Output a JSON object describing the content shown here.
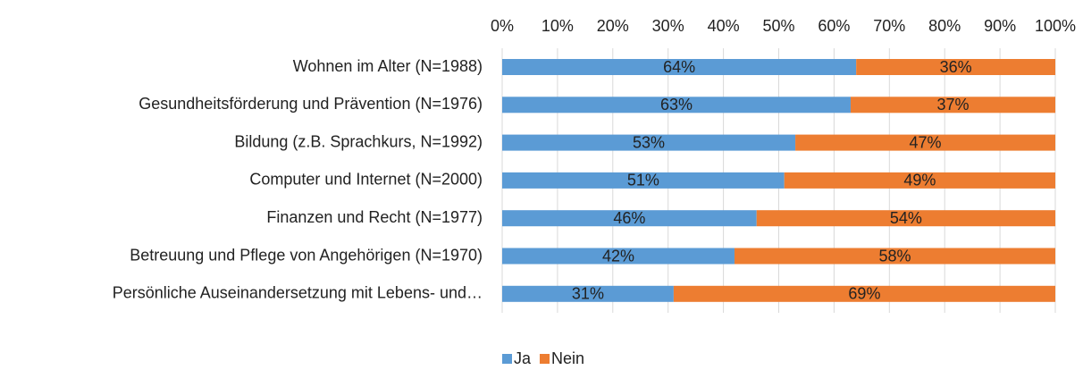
{
  "chart_data": {
    "type": "stacked_barh",
    "categories": [
      "Wohnen im Alter (N=1988)",
      "Gesundheitsförderung und Prävention (N=1976)",
      "Bildung (z.B. Sprachkurs, N=1992)",
      "Computer und Internet (N=2000)",
      "Finanzen und Recht (N=1977)",
      "Betreuung und Pflege von Angehörigen (N=1970)",
      "Persönliche Auseinandersetzung mit Lebens- und…"
    ],
    "series": [
      {
        "name": "Ja",
        "color": "#5b9bd5",
        "values": [
          64,
          63,
          53,
          51,
          46,
          42,
          31
        ],
        "value_labels": [
          "64%",
          "63%",
          "53%",
          "51%",
          "46%",
          "42%",
          "31%"
        ]
      },
      {
        "name": "Nein",
        "color": "#ed7d31",
        "values": [
          36,
          37,
          47,
          49,
          54,
          58,
          69
        ],
        "value_labels": [
          "36%",
          "37%",
          "47%",
          "49%",
          "54%",
          "58%",
          "69%"
        ]
      }
    ],
    "xlim": [
      0,
      100
    ],
    "xticks": [
      {
        "value": 0,
        "label": "0%"
      },
      {
        "value": 10,
        "label": "10%"
      },
      {
        "value": 20,
        "label": "20%"
      },
      {
        "value": 30,
        "label": "30%"
      },
      {
        "value": 40,
        "label": "40%"
      },
      {
        "value": 50,
        "label": "50%"
      },
      {
        "value": 60,
        "label": "60%"
      },
      {
        "value": 70,
        "label": "70%"
      },
      {
        "value": 80,
        "label": "80%"
      },
      {
        "value": 90,
        "label": "90%"
      },
      {
        "value": 100,
        "label": "100%"
      }
    ],
    "grid": true,
    "legend": "bottom"
  }
}
